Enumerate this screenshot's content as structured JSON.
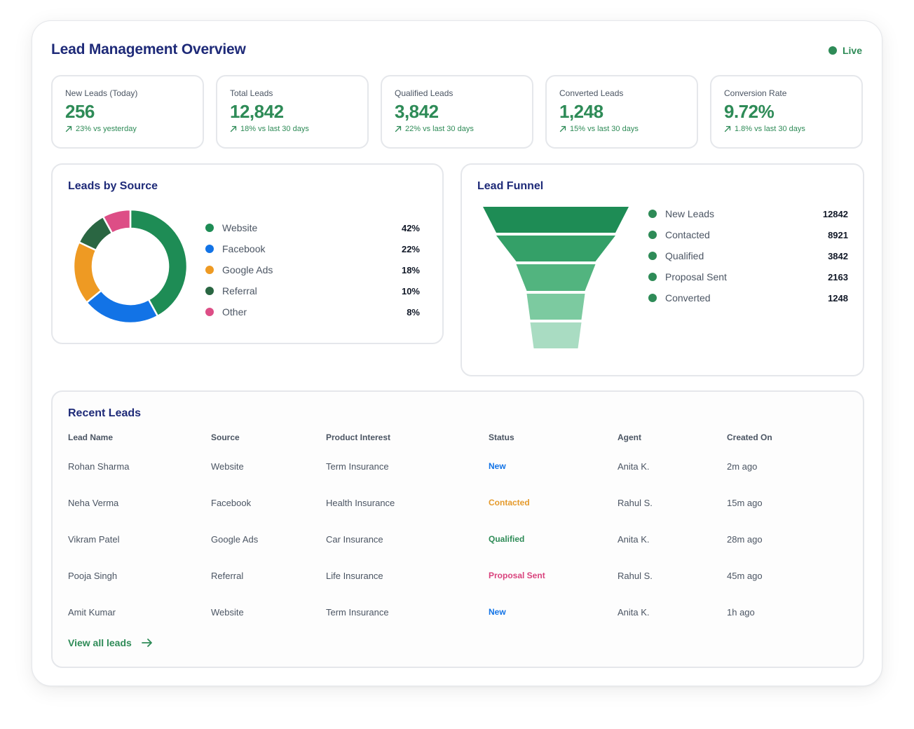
{
  "header": {
    "title": "Lead Management Overview",
    "live_label": "Live",
    "live_color": "#2e8b57"
  },
  "kpis": [
    {
      "label": "New Leads (Today)",
      "value": "256",
      "trend": "23% vs yesterday"
    },
    {
      "label": "Total Leads",
      "value": "12,842",
      "trend": "18% vs last 30 days"
    },
    {
      "label": "Qualified Leads",
      "value": "3,842",
      "trend": "22% vs last 30 days"
    },
    {
      "label": "Converted Leads",
      "value": "1,248",
      "trend": "15% vs last 30 days"
    },
    {
      "label": "Conversion Rate",
      "value": "9.72%",
      "trend": "1.8% vs last 30 days"
    }
  ],
  "sources": {
    "title": "Leads by Source",
    "items": [
      {
        "name": "Website",
        "value": "42%",
        "color": "#1e8c55"
      },
      {
        "name": "Facebook",
        "value": "22%",
        "color": "#1273e6"
      },
      {
        "name": "Google Ads",
        "value": "18%",
        "color": "#ee9a23"
      },
      {
        "name": "Referral",
        "value": "10%",
        "color": "#2a6642"
      },
      {
        "name": "Other",
        "value": "8%",
        "color": "#dd4e86"
      }
    ]
  },
  "chart_data": {
    "type": "pie",
    "categories": [
      "Website",
      "Facebook",
      "Google Ads",
      "Referral",
      "Other"
    ],
    "values": [
      42,
      22,
      18,
      10,
      8
    ],
    "title": "Leads by Source"
  },
  "funnel": {
    "title": "Lead Funnel",
    "stages": [
      {
        "name": "New Leads",
        "value": "12842",
        "color": "#1e8c55"
      },
      {
        "name": "Contacted",
        "value": "8921",
        "color": "#34a068"
      },
      {
        "name": "Qualified",
        "value": "3842",
        "color": "#52b47f"
      },
      {
        "name": "Proposal Sent",
        "value": "2163",
        "color": "#7ccaa0"
      },
      {
        "name": "Converted",
        "value": "1248",
        "color": "#a9dcc2"
      }
    ],
    "dot_color": "#2e8b57"
  },
  "leads": {
    "title": "Recent Leads",
    "headers": [
      "Lead Name",
      "Source",
      "Product Interest",
      "Status",
      "Agent",
      "Created On"
    ],
    "rows": [
      {
        "name": "Rohan Sharma",
        "source": "Website",
        "product": "Term Insurance",
        "status": "New",
        "status_color": "#1273e6",
        "agent": "Anita K.",
        "created": "2m ago"
      },
      {
        "name": "Neha Verma",
        "source": "Facebook",
        "product": "Health Insurance",
        "status": "Contacted",
        "status_color": "#e59a2b",
        "agent": "Rahul S.",
        "created": "15m ago"
      },
      {
        "name": "Vikram Patel",
        "source": "Google Ads",
        "product": "Car Insurance",
        "status": "Qualified",
        "status_color": "#2e8b57",
        "agent": "Anita K.",
        "created": "28m ago"
      },
      {
        "name": "Pooja Singh",
        "source": "Referral",
        "product": "Life Insurance",
        "status": "Proposal Sent",
        "status_color": "#d9437d",
        "agent": "Rahul S.",
        "created": "45m ago"
      },
      {
        "name": "Amit Kumar",
        "source": "Website",
        "product": "Term Insurance",
        "status": "New",
        "status_color": "#1273e6",
        "agent": "Anita K.",
        "created": "1h ago"
      }
    ],
    "view_all": "View all leads"
  }
}
